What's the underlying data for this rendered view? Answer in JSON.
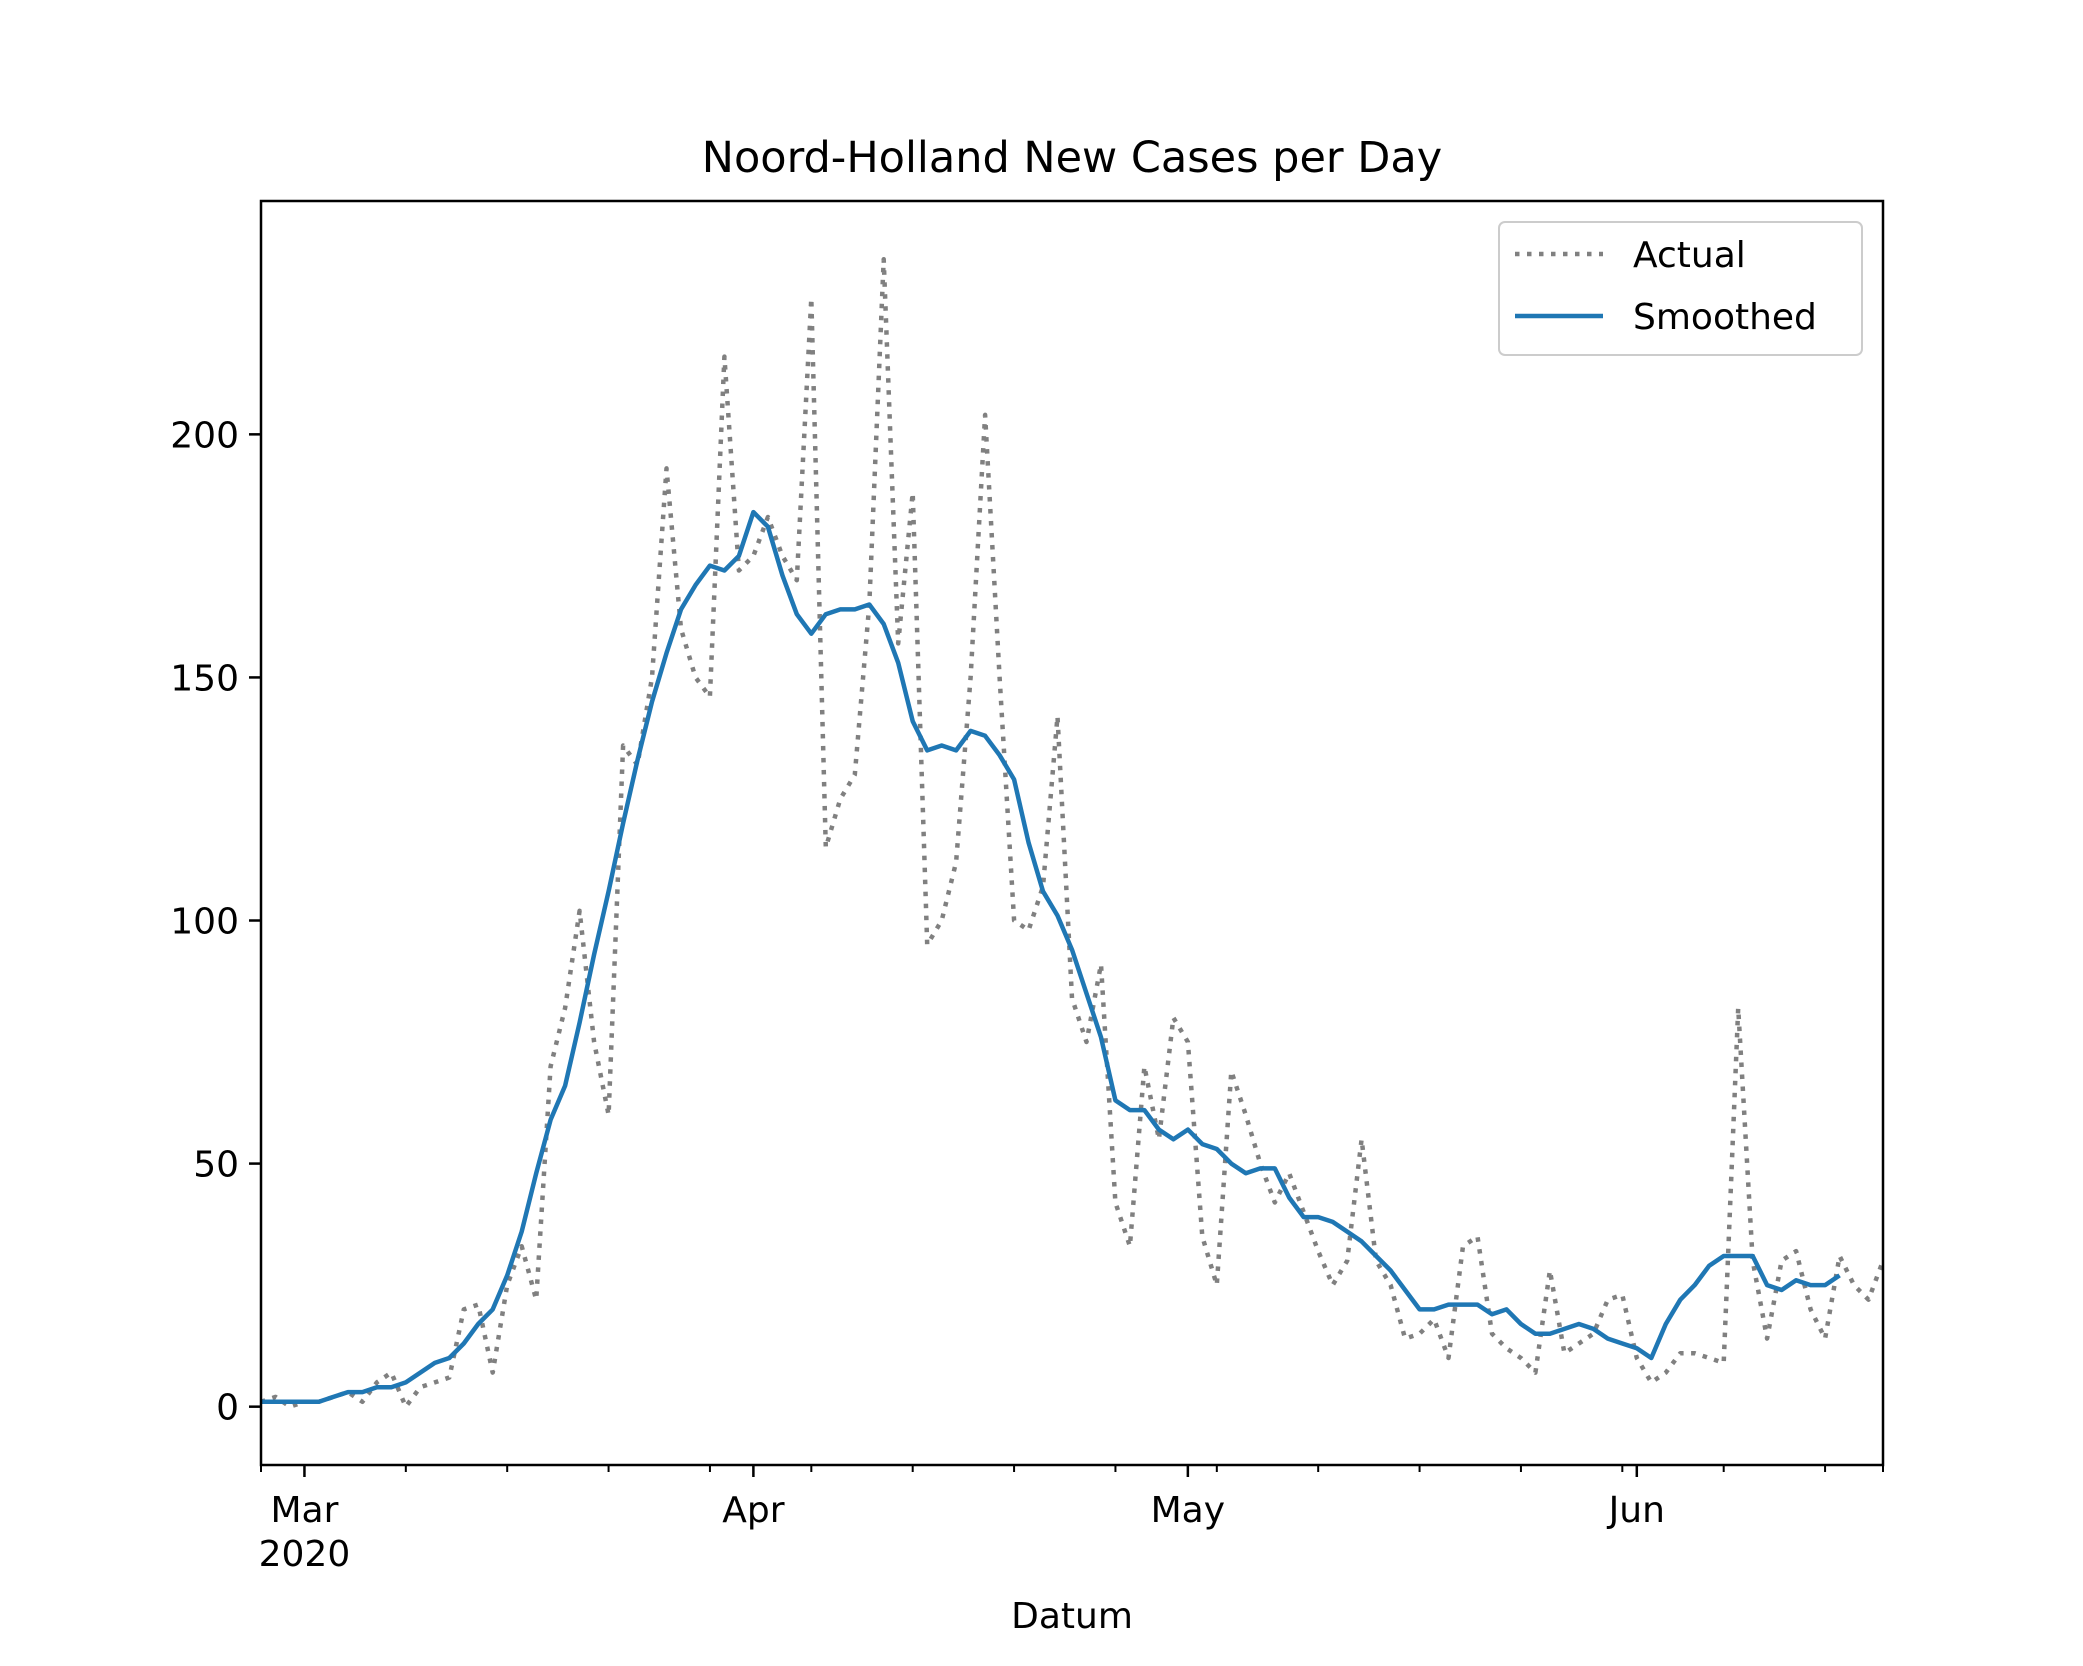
{
  "chart_data": {
    "type": "line",
    "title": "Noord-Holland New Cases per Day",
    "xlabel": "Datum",
    "ylabel": "",
    "x_start": "2020-02-27",
    "x_end": "2020-06-18",
    "ylim": [
      -12,
      248
    ],
    "grid": false,
    "legend_position": "top-right",
    "y_ticks": [
      0,
      50,
      100,
      150,
      200
    ],
    "x_ticks": [
      {
        "date": "2020-03-01",
        "label": "Mar",
        "sublabel": "2020"
      },
      {
        "date": "2020-04-01",
        "label": "Apr",
        "sublabel": ""
      },
      {
        "date": "2020-05-01",
        "label": "May",
        "sublabel": ""
      },
      {
        "date": "2020-06-01",
        "label": "Jun",
        "sublabel": ""
      }
    ],
    "minor_tick_dates": [
      "2020-02-27",
      "2020-03-08",
      "2020-03-15",
      "2020-03-22",
      "2020-03-29",
      "2020-04-05",
      "2020-04-12",
      "2020-04-19",
      "2020-04-26",
      "2020-05-03",
      "2020-05-10",
      "2020-05-17",
      "2020-05-24",
      "2020-05-31",
      "2020-06-07",
      "2020-06-14",
      "2020-06-18"
    ],
    "series": [
      {
        "name": "Actual",
        "color": "#808080",
        "style": "dotted",
        "values": [
          1,
          2,
          0,
          1,
          1,
          2,
          3,
          1,
          5,
          7,
          0,
          4,
          5,
          6,
          20,
          21,
          7,
          25,
          33,
          22,
          70,
          82,
          102,
          75,
          60,
          136,
          132,
          150,
          193,
          160,
          150,
          146,
          216,
          172,
          175,
          183,
          175,
          170,
          228,
          115,
          125,
          130,
          165,
          236,
          157,
          188,
          95,
          100,
          112,
          150,
          204,
          150,
          100,
          98,
          107,
          142,
          84,
          75,
          91,
          42,
          33,
          70,
          55,
          80,
          75,
          35,
          25,
          69,
          60,
          50,
          42,
          48,
          40,
          32,
          25,
          30,
          55,
          30,
          25,
          14,
          15,
          18,
          10,
          33,
          35,
          15,
          12,
          10,
          7,
          28,
          11,
          13,
          15,
          22,
          23,
          10,
          5,
          7,
          11,
          11,
          10,
          9,
          82,
          30,
          14,
          30,
          32,
          20,
          14,
          31,
          25,
          22,
          30
        ]
      },
      {
        "name": "Smoothed",
        "color": "#1f77b4",
        "style": "solid",
        "values": [
          1,
          1,
          1,
          1,
          1,
          2,
          3,
          3,
          4,
          4,
          5,
          7,
          9,
          10,
          13,
          17,
          20,
          27,
          36,
          48,
          59,
          66,
          79,
          93,
          106,
          120,
          133,
          145,
          155,
          164,
          169,
          173,
          172,
          175,
          184,
          181,
          171,
          163,
          159,
          163,
          164,
          164,
          165,
          161,
          153,
          141,
          135,
          136,
          135,
          139,
          138,
          134,
          129,
          116,
          106,
          101,
          94,
          85,
          76,
          63,
          61,
          61,
          57,
          55,
          57,
          54,
          53,
          50,
          48,
          49,
          49,
          43,
          39,
          39,
          38,
          36,
          34,
          31,
          28,
          24,
          20,
          20,
          21,
          21,
          21,
          19,
          20,
          17,
          15,
          15,
          16,
          17,
          16,
          14,
          13,
          12,
          10,
          17,
          22,
          25,
          29,
          31,
          31,
          31,
          25,
          24,
          26,
          25,
          25,
          27
        ]
      }
    ]
  }
}
